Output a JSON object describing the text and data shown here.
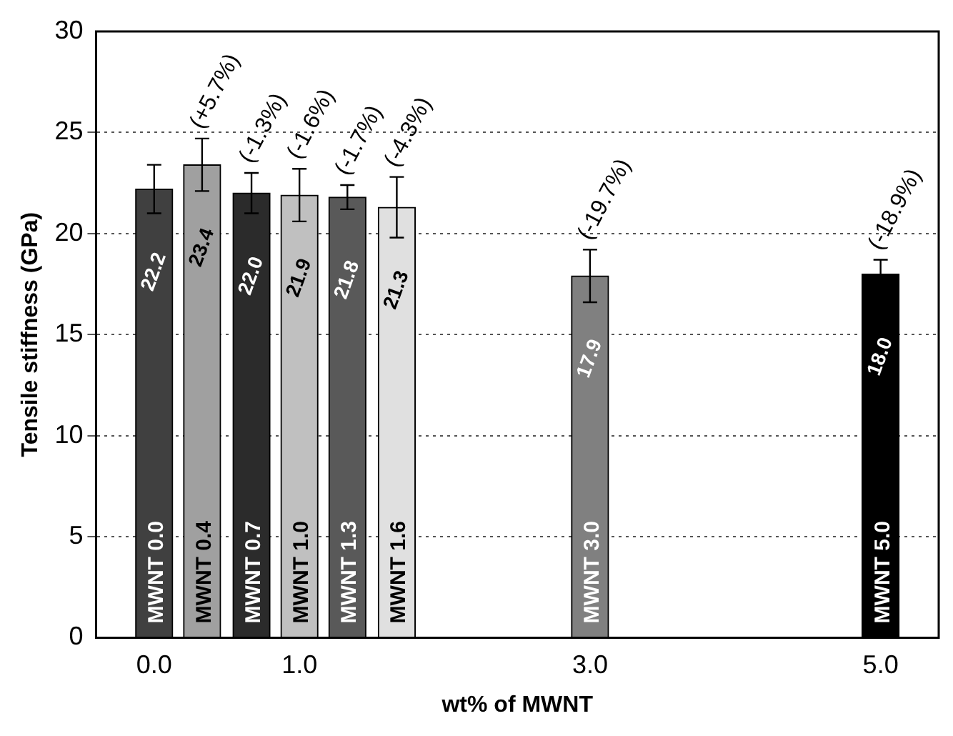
{
  "chart_data": {
    "type": "bar",
    "xlabel": "wt% of MWNT",
    "ylabel": "Tensile stiffness (GPa)",
    "xlim": [
      -0.4,
      5.4
    ],
    "xticks": [
      {
        "value": 0,
        "label": "0.0"
      },
      {
        "value": 1,
        "label": "1.0"
      },
      {
        "value": 3,
        "label": "3.0"
      },
      {
        "value": 5,
        "label": "5.0"
      }
    ],
    "ylim": [
      0,
      30
    ],
    "yticks": [
      0,
      5,
      10,
      15,
      20,
      25,
      30
    ],
    "grid": "y",
    "legend": false,
    "series": [
      {
        "name": "MWNT 0.0",
        "color": "#404040",
        "x": [
          0
        ],
        "values": [
          22.2
        ],
        "errors": [
          1.2
        ],
        "value_labels": [
          "22.2"
        ]
      },
      {
        "name": "MWNT 0.4",
        "color": "#a0a0a0",
        "x": [
          0.33
        ],
        "values": [
          23.4
        ],
        "errors": [
          1.3
        ],
        "value_labels": [
          "23.4"
        ]
      },
      {
        "name": "MWNT 0.7",
        "color": "#2b2b2b",
        "x": [
          0.67
        ],
        "values": [
          22.0
        ],
        "errors": [
          1.0
        ],
        "value_labels": [
          "22.0"
        ]
      },
      {
        "name": "MWNT 1.0",
        "color": "#c0c0c0",
        "x": [
          1
        ],
        "values": [
          21.9
        ],
        "errors": [
          1.3
        ],
        "value_labels": [
          "21.9"
        ]
      },
      {
        "name": "MWNT 1.3",
        "color": "#595959",
        "x": [
          1.33
        ],
        "values": [
          21.8
        ],
        "errors": [
          0.6
        ],
        "value_labels": [
          "21.8"
        ]
      },
      {
        "name": "MWNT 1.6",
        "color": "#e0e0e0",
        "x": [
          1.67
        ],
        "values": [
          21.3
        ],
        "errors": [
          1.5
        ],
        "value_labels": [
          "21.3"
        ]
      },
      {
        "name": "MWNT 3.0",
        "color": "#808080",
        "x": [
          3
        ],
        "values": [
          17.9
        ],
        "errors": [
          1.3
        ],
        "value_labels": [
          "17.9"
        ]
      },
      {
        "name": "MWNT 5.0",
        "color": "#000000",
        "x": [
          5
        ],
        "values": [
          18.0
        ],
        "errors": [
          0.7
        ],
        "value_labels": [
          "18.0"
        ]
      }
    ],
    "annotations": [
      {
        "text": "(+5.7%)",
        "x": 0.33,
        "y": 23.4
      },
      {
        "text": "(-1.3%)",
        "x": 0.67,
        "y": 22.0
      },
      {
        "text": "(-1.6%)",
        "x": 1,
        "y": 21.9
      },
      {
        "text": "(-1.7%)",
        "x": 1.33,
        "y": 21.8
      },
      {
        "text": "(-4.3%)",
        "x": 1.67,
        "y": 21.3
      },
      {
        "text": "(-19.7%)",
        "x": 3,
        "y": 17.9
      },
      {
        "text": "(-18.9%)",
        "x": 5,
        "y": 18.0
      }
    ]
  }
}
